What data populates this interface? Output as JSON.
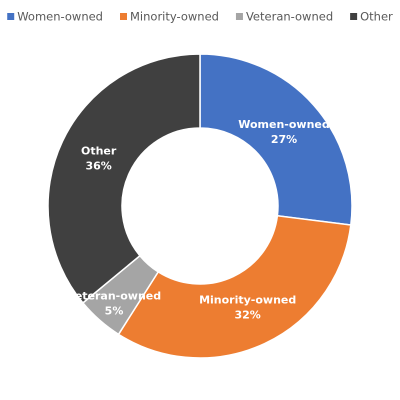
{
  "chart_data": {
    "type": "donut",
    "categories": [
      "Women-owned",
      "Minority-owned",
      "Veteran-owned",
      "Other"
    ],
    "values": [
      27,
      32,
      5,
      36
    ],
    "value_labels": [
      "27%",
      "32%",
      "5%",
      "36%"
    ],
    "colors": [
      "#4472c4",
      "#ed7d31",
      "#a5a5a5",
      "#404040"
    ],
    "legend": "top"
  }
}
